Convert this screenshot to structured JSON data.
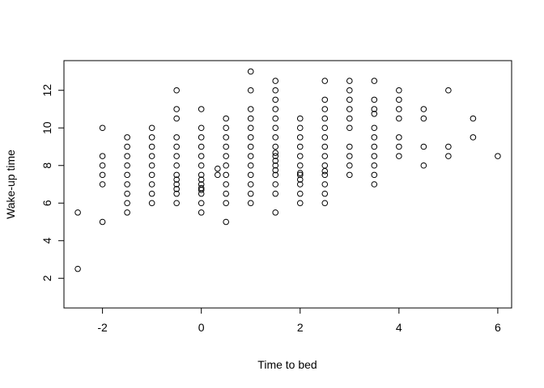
{
  "chart_data": {
    "type": "scatter",
    "title": "",
    "xlabel": "Time to bed",
    "ylabel": "Wake-up time",
    "xlim": [
      -2.78,
      6.28
    ],
    "ylim": [
      0.42,
      13.58
    ],
    "xticks": [
      -2,
      0,
      2,
      4,
      6
    ],
    "yticks": [
      2,
      4,
      6,
      8,
      10,
      12
    ],
    "grid": false,
    "legend": "none",
    "marker": "open-circle",
    "point_color": "#000000",
    "points": [
      [
        -2.5,
        2.5
      ],
      [
        -2.5,
        5.5
      ],
      [
        -2,
        5
      ],
      [
        -2,
        7
      ],
      [
        -2,
        7.5
      ],
      [
        -2,
        8
      ],
      [
        -2,
        8.5
      ],
      [
        -2,
        10
      ],
      [
        -1.5,
        5.5
      ],
      [
        -1.5,
        6
      ],
      [
        -1.5,
        6.5
      ],
      [
        -1.5,
        7
      ],
      [
        -1.5,
        7.5
      ],
      [
        -1.5,
        8
      ],
      [
        -1.5,
        8.5
      ],
      [
        -1.5,
        9
      ],
      [
        -1.5,
        9.5
      ],
      [
        -1,
        6
      ],
      [
        -1,
        6.5
      ],
      [
        -1,
        7
      ],
      [
        -1,
        7.5
      ],
      [
        -1,
        8
      ],
      [
        -1,
        8.5
      ],
      [
        -1,
        9
      ],
      [
        -1,
        9.5
      ],
      [
        -1,
        10
      ],
      [
        -0.5,
        6
      ],
      [
        -0.5,
        6.5
      ],
      [
        -0.5,
        6.75
      ],
      [
        -0.5,
        7
      ],
      [
        -0.5,
        7.25
      ],
      [
        -0.5,
        7.5
      ],
      [
        -0.5,
        8
      ],
      [
        -0.5,
        8.5
      ],
      [
        -0.5,
        9
      ],
      [
        -0.5,
        9.5
      ],
      [
        -0.5,
        10.5
      ],
      [
        -0.5,
        11
      ],
      [
        -0.5,
        12
      ],
      [
        0,
        5.5
      ],
      [
        0,
        6
      ],
      [
        0,
        6.5
      ],
      [
        0,
        6.7
      ],
      [
        0,
        6.8
      ],
      [
        0,
        7
      ],
      [
        0,
        7.25
      ],
      [
        0,
        7.5
      ],
      [
        0,
        8
      ],
      [
        0,
        8.5
      ],
      [
        0,
        9
      ],
      [
        0,
        9.5
      ],
      [
        0,
        10
      ],
      [
        0,
        11
      ],
      [
        0.33,
        7.5
      ],
      [
        0.33,
        7.83
      ],
      [
        0.5,
        5
      ],
      [
        0.5,
        6
      ],
      [
        0.5,
        6.5
      ],
      [
        0.5,
        7
      ],
      [
        0.5,
        7.5
      ],
      [
        0.5,
        8
      ],
      [
        0.5,
        8.5
      ],
      [
        0.5,
        9
      ],
      [
        0.5,
        9.5
      ],
      [
        0.5,
        10
      ],
      [
        0.5,
        10.5
      ],
      [
        1,
        6
      ],
      [
        1,
        6.5
      ],
      [
        1,
        7
      ],
      [
        1,
        7.5
      ],
      [
        1,
        8
      ],
      [
        1,
        8.5
      ],
      [
        1,
        9
      ],
      [
        1,
        9.5
      ],
      [
        1,
        10
      ],
      [
        1,
        10.5
      ],
      [
        1,
        11
      ],
      [
        1,
        12
      ],
      [
        1,
        13
      ],
      [
        1.5,
        5.5
      ],
      [
        1.5,
        6.5
      ],
      [
        1.5,
        7
      ],
      [
        1.5,
        7.5
      ],
      [
        1.5,
        7.75
      ],
      [
        1.5,
        8
      ],
      [
        1.5,
        8.25
      ],
      [
        1.5,
        8.5
      ],
      [
        1.5,
        8.67
      ],
      [
        1.5,
        9
      ],
      [
        1.5,
        9.5
      ],
      [
        1.5,
        10
      ],
      [
        1.5,
        10.5
      ],
      [
        1.5,
        11
      ],
      [
        1.5,
        11.5
      ],
      [
        1.5,
        12
      ],
      [
        1.5,
        12.5
      ],
      [
        2,
        6
      ],
      [
        2,
        6.5
      ],
      [
        2,
        7
      ],
      [
        2,
        7.25
      ],
      [
        2,
        7.5
      ],
      [
        2,
        7.6
      ],
      [
        2,
        8
      ],
      [
        2,
        8.5
      ],
      [
        2,
        9
      ],
      [
        2,
        9.5
      ],
      [
        2,
        10
      ],
      [
        2,
        10.5
      ],
      [
        2.5,
        6
      ],
      [
        2.5,
        6.5
      ],
      [
        2.5,
        7
      ],
      [
        2.5,
        7.5
      ],
      [
        2.5,
        7.7
      ],
      [
        2.5,
        8
      ],
      [
        2.5,
        8.5
      ],
      [
        2.5,
        9
      ],
      [
        2.5,
        9.5
      ],
      [
        2.5,
        10
      ],
      [
        2.5,
        10.5
      ],
      [
        2.5,
        11
      ],
      [
        2.5,
        11.5
      ],
      [
        2.5,
        12.5
      ],
      [
        3,
        7.5
      ],
      [
        3,
        8
      ],
      [
        3,
        8.5
      ],
      [
        3,
        9
      ],
      [
        3,
        10
      ],
      [
        3,
        10.5
      ],
      [
        3,
        11
      ],
      [
        3,
        11.5
      ],
      [
        3,
        12
      ],
      [
        3,
        12.5
      ],
      [
        3.5,
        7
      ],
      [
        3.5,
        7.5
      ],
      [
        3.5,
        8
      ],
      [
        3.5,
        8.5
      ],
      [
        3.5,
        9
      ],
      [
        3.5,
        9.5
      ],
      [
        3.5,
        10
      ],
      [
        3.5,
        10.75
      ],
      [
        3.5,
        11
      ],
      [
        3.5,
        11.5
      ],
      [
        3.5,
        12.5
      ],
      [
        4,
        8.5
      ],
      [
        4,
        9
      ],
      [
        4,
        9.5
      ],
      [
        4,
        10.5
      ],
      [
        4,
        11
      ],
      [
        4,
        11.5
      ],
      [
        4,
        12
      ],
      [
        4.5,
        8
      ],
      [
        4.5,
        9
      ],
      [
        4.5,
        10.5
      ],
      [
        4.5,
        11
      ],
      [
        5,
        8.5
      ],
      [
        5,
        9
      ],
      [
        5,
        12
      ],
      [
        5.5,
        9.5
      ],
      [
        5.5,
        10.5
      ],
      [
        6,
        8.5
      ]
    ]
  }
}
